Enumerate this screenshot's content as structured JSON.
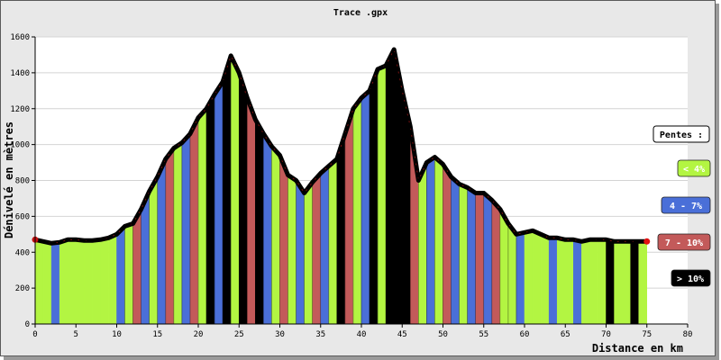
{
  "chart_data": {
    "type": "area",
    "title": "Trace .gpx",
    "xlabel": "Distance en km",
    "ylabel": "Dénivelé en mètres",
    "xlim": [
      0,
      80
    ],
    "ylim": [
      0,
      1600
    ],
    "xticks": [
      "0",
      "5",
      "10",
      "15",
      "20",
      "25",
      "30",
      "35",
      "40",
      "45",
      "50",
      "55",
      "60",
      "65",
      "70",
      "75",
      "80"
    ],
    "yticks": [
      "0",
      "200",
      "400",
      "600",
      "800",
      "1000",
      "1200",
      "1400",
      "1600"
    ],
    "grid": true,
    "legend_position": "right",
    "legend_title": "Pentes :",
    "legend": [
      {
        "label": "< 4%",
        "color": "#b3f542",
        "text_color": "#ffffff"
      },
      {
        "label": "4 - 7%",
        "color": "#4a6fd8",
        "text_color": "#ffffff"
      },
      {
        "label": "7 - 10%",
        "color": "#c35a5a",
        "text_color": "#ffffff"
      },
      {
        "label": "> 10%",
        "color": "#000000",
        "text_color": "#ffffff"
      }
    ],
    "x": [
      0,
      1,
      2,
      3,
      4,
      5,
      6,
      7,
      8,
      9,
      10,
      11,
      12,
      13,
      14,
      15,
      16,
      17,
      18,
      19,
      20,
      21,
      22,
      23,
      24,
      25,
      26,
      27,
      28,
      29,
      30,
      31,
      32,
      33,
      34,
      35,
      36,
      37,
      38,
      39,
      40,
      41,
      42,
      43,
      44,
      45,
      46,
      47,
      48,
      49,
      50,
      51,
      52,
      53,
      54,
      55,
      56,
      57,
      58,
      59,
      60,
      61,
      62,
      63,
      64,
      65,
      66,
      67,
      68,
      69,
      70,
      71,
      72,
      73,
      74,
      75
    ],
    "y": [
      470,
      460,
      450,
      455,
      470,
      470,
      465,
      465,
      470,
      480,
      500,
      545,
      560,
      640,
      740,
      820,
      920,
      980,
      1010,
      1060,
      1150,
      1200,
      1280,
      1350,
      1495,
      1400,
      1260,
      1140,
      1060,
      990,
      940,
      830,
      800,
      730,
      790,
      840,
      880,
      920,
      1060,
      1200,
      1260,
      1300,
      1420,
      1440,
      1530,
      1300,
      1100,
      800,
      900,
      930,
      890,
      820,
      780,
      760,
      730,
      730,
      690,
      640,
      560,
      500,
      510,
      520,
      500,
      480,
      480,
      470,
      470,
      460,
      470,
      470,
      470,
      460,
      460,
      460,
      460,
      460
    ],
    "segment_slope_colors": [
      "#b3f542",
      "#b3f542",
      "#4a6fd8",
      "#b3f542",
      "#b3f542",
      "#b3f542",
      "#b3f542",
      "#b3f542",
      "#b3f542",
      "#b3f542",
      "#4a6fd8",
      "#b3f542",
      "#c35a5a",
      "#4a6fd8",
      "#b3f542",
      "#4a6fd8",
      "#c35a5a",
      "#b3f542",
      "#4a6fd8",
      "#c35a5a",
      "#b3f542",
      "#000000",
      "#4a6fd8",
      "#000000",
      "#b3f542",
      "#000000",
      "#c35a5a",
      "#000000",
      "#4a6fd8",
      "#b3f542",
      "#c35a5a",
      "#b3f542",
      "#4a6fd8",
      "#b3f542",
      "#c35a5a",
      "#4a6fd8",
      "#b3f542",
      "#000000",
      "#c35a5a",
      "#b3f542",
      "#4a6fd8",
      "#000000",
      "#b3f542",
      "#000000",
      "#000000",
      "#000000",
      "#c35a5a",
      "#b3f542",
      "#4a6fd8",
      "#b3f542",
      "#c35a5a",
      "#4a6fd8",
      "#b3f542",
      "#4a6fd8",
      "#c35a5a",
      "#4a6fd8",
      "#c35a5a",
      "#b3f542",
      "#b3f542",
      "#4a6fd8",
      "#b3f542",
      "#b3f542",
      "#b3f542",
      "#4a6fd8",
      "#b3f542",
      "#b3f542",
      "#4a6fd8",
      "#b3f542",
      "#b3f542",
      "#b3f542",
      "#000000",
      "#b3f542",
      "#b3f542",
      "#000000",
      "#b3f542"
    ]
  }
}
